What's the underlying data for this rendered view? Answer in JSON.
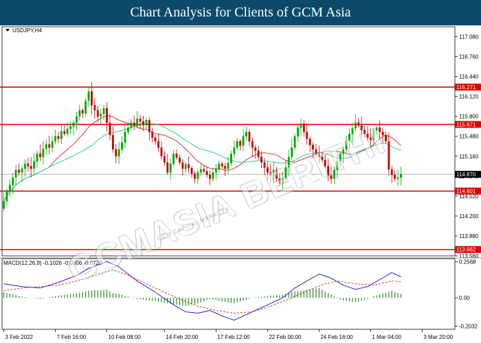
{
  "header": {
    "title": "Chart Analysis for Clients of GCM Asia"
  },
  "watermark": {
    "main": "GCMASIA BERITHI",
    "sub": "GCM CAPITAL MARKETS"
  },
  "colors": {
    "banner": "#0c4a6a",
    "bull": "#00a800",
    "bear": "#c00000",
    "level_line": "#e00000",
    "ma_fast": "#e03030",
    "ma_slow": "#20d080",
    "macd_line": "#2020d0",
    "signal_line": "#e03030",
    "macd_hist": "#228b22",
    "price_line": "#8a9aa8"
  },
  "chart_data": [
    {
      "type": "candlestick",
      "title": "USDJPY,H4",
      "ylim": [
        113.56,
        117.24
      ],
      "y_ticks": [
        "117.080",
        "116.760",
        "116.440",
        "116.120",
        "115.800",
        "115.480",
        "115.160",
        "114.840",
        "114.520",
        "114.200",
        "113.880",
        "113.560"
      ],
      "y_tick_values": [
        117.08,
        116.76,
        116.44,
        116.12,
        115.8,
        115.48,
        115.16,
        114.84,
        114.52,
        114.2,
        113.88,
        113.56
      ],
      "x_ticks": [
        "3 Feb 2022",
        "7 Feb 16:00",
        "10 Feb 08:00",
        "14 Feb 20:00",
        "17 Feb 12:00",
        "22 Feb 00:00",
        "24 Feb 16:00",
        "1 Mar 04:00",
        "3 Mar 20:00"
      ],
      "x_tick_bars": [
        0,
        17,
        34,
        53,
        70,
        87,
        104,
        121,
        138
      ],
      "levels": [
        {
          "value": 116.271,
          "label": "116.271"
        },
        {
          "value": 115.671,
          "label": "115.671"
        },
        {
          "value": 114.601,
          "label": "114.601"
        },
        {
          "value": 113.662,
          "label": "113.662"
        }
      ],
      "current_price": {
        "value": 114.87,
        "label": "114.870"
      },
      "candles_close": [
        114.44,
        114.61,
        114.7,
        114.82,
        114.94,
        114.9,
        114.96,
        115.04,
        115.0,
        114.96,
        115.08,
        115.2,
        115.15,
        115.28,
        115.35,
        115.3,
        115.4,
        115.48,
        115.44,
        115.56,
        115.52,
        115.6,
        115.64,
        115.7,
        115.8,
        115.9,
        115.85,
        116.05,
        116.2,
        115.98,
        115.9,
        115.8,
        115.84,
        115.93,
        115.7,
        115.5,
        115.27,
        115.16,
        115.27,
        115.38,
        115.55,
        115.62,
        115.7,
        115.65,
        115.76,
        115.72,
        115.66,
        115.74,
        115.55,
        115.46,
        115.4,
        115.3,
        115.16,
        115.06,
        114.9,
        115.04,
        115.2,
        115.14,
        115.06,
        114.96,
        115.03,
        114.97,
        114.88,
        114.8,
        114.9,
        114.95,
        114.92,
        114.86,
        114.8,
        114.9,
        114.95,
        115.04,
        115.0,
        114.96,
        115.05,
        115.2,
        115.3,
        115.4,
        115.33,
        115.48,
        115.55,
        115.4,
        115.3,
        115.25,
        115.15,
        115.06,
        114.98,
        114.9,
        114.85,
        114.94,
        114.8,
        114.72,
        114.8,
        114.98,
        115.15,
        115.3,
        115.48,
        115.62,
        115.68,
        115.55,
        115.44,
        115.34,
        115.27,
        115.19,
        115.15,
        115.1,
        115.0,
        114.85,
        114.8,
        114.94,
        115.08,
        115.2,
        115.27,
        115.4,
        115.52,
        115.61,
        115.7,
        115.65,
        115.58,
        115.52,
        115.46,
        115.42,
        115.58,
        115.62,
        115.55,
        115.5,
        115.4,
        114.95,
        114.86,
        114.8,
        114.82,
        114.87
      ],
      "ma_fast_last": 115.32,
      "ma_slow_last": 115.15
    },
    {
      "type": "macd",
      "title": "MACD(12,26,9) -0.1026 -0.0306 -0.0720",
      "ylim": [
        -0.225,
        0.28
      ],
      "y_ticks": [
        "0.2568",
        "0.00",
        "-0.2032"
      ],
      "y_tick_values": [
        0.2568,
        0,
        -0.2032
      ],
      "macd_key": [
        [
          0,
          0.1
        ],
        [
          6,
          0.08
        ],
        [
          12,
          0.07
        ],
        [
          18,
          0.11
        ],
        [
          24,
          0.16
        ],
        [
          28,
          0.21
        ],
        [
          34,
          0.26
        ],
        [
          38,
          0.22
        ],
        [
          44,
          0.12
        ],
        [
          50,
          0.04
        ],
        [
          56,
          -0.05
        ],
        [
          60,
          -0.1
        ],
        [
          64,
          -0.11
        ],
        [
          68,
          -0.09
        ],
        [
          72,
          -0.13
        ],
        [
          76,
          -0.16
        ],
        [
          80,
          -0.12
        ],
        [
          84,
          -0.08
        ],
        [
          88,
          -0.04
        ],
        [
          92,
          0.0
        ],
        [
          96,
          0.07
        ],
        [
          100,
          0.12
        ],
        [
          104,
          0.17
        ],
        [
          108,
          0.14
        ],
        [
          112,
          0.09
        ],
        [
          116,
          0.06
        ],
        [
          120,
          0.08
        ],
        [
          124,
          0.13
        ],
        [
          128,
          0.18
        ],
        [
          131,
          0.15
        ],
        [
          134,
          0.08
        ],
        [
          138,
          -0.05
        ],
        [
          142,
          -0.1
        ]
      ],
      "signal_key": [
        [
          0,
          0.05
        ],
        [
          6,
          0.07
        ],
        [
          12,
          0.08
        ],
        [
          18,
          0.09
        ],
        [
          24,
          0.12
        ],
        [
          30,
          0.16
        ],
        [
          36,
          0.2
        ],
        [
          40,
          0.17
        ],
        [
          46,
          0.11
        ],
        [
          52,
          0.05
        ],
        [
          58,
          -0.01
        ],
        [
          64,
          -0.06
        ],
        [
          70,
          -0.09
        ],
        [
          76,
          -0.11
        ],
        [
          82,
          -0.1
        ],
        [
          88,
          -0.06
        ],
        [
          94,
          -0.01
        ],
        [
          100,
          0.05
        ],
        [
          106,
          0.1
        ],
        [
          110,
          0.12
        ],
        [
          116,
          0.1
        ],
        [
          122,
          0.09
        ],
        [
          128,
          0.12
        ],
        [
          134,
          0.11
        ],
        [
          138,
          0.05
        ],
        [
          142,
          -0.03
        ]
      ]
    }
  ]
}
